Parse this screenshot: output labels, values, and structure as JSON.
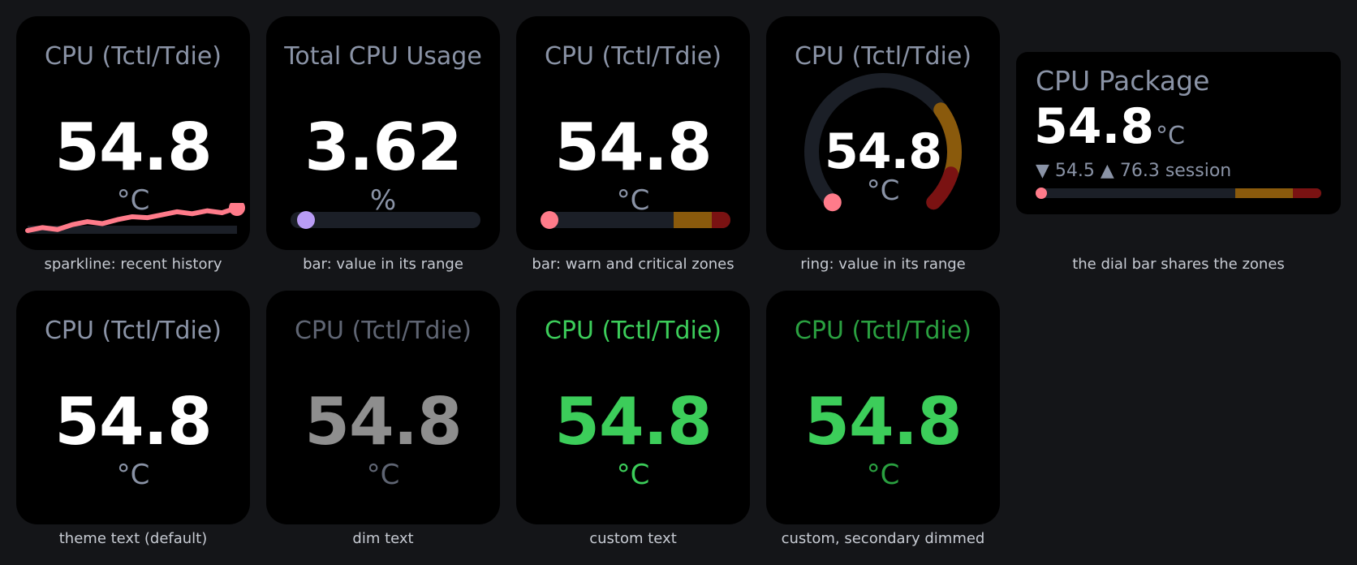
{
  "colors": {
    "page_bg": "#141518",
    "tile_bg": "#000000",
    "title_default": "#8a93a6",
    "title_dim": "#5f6573",
    "value_default": "#ffffff",
    "value_dim": "#8e8e8e",
    "custom_green": "#3ccd5a",
    "custom_green_dim": "#2aa040",
    "track": "#1b1f27",
    "warn": "#8a5a0c",
    "critical": "#7a1212",
    "sparkline": "#ff7b8a",
    "bar_knob_purple": "#b99cf5",
    "knob_red": "#ff7b8a"
  },
  "tiles": [
    {
      "title": "CPU (Tctl/Tdie)",
      "value": "54.8",
      "unit": "°C",
      "caption": "sparkline: recent history",
      "visual": "sparkline",
      "sparkline_values": [
        54.0,
        54.3,
        54.1,
        54.6,
        54.9,
        54.7,
        55.1,
        55.4,
        55.3,
        55.6,
        55.9,
        55.7,
        56.0,
        55.8,
        56.3
      ]
    },
    {
      "title": "Total CPU Usage",
      "value": "3.62",
      "unit": "%",
      "caption": "bar: value in its range",
      "visual": "bar",
      "bar_fraction": 0.036
    },
    {
      "title": "CPU (Tctl/Tdie)",
      "value": "54.8",
      "unit": "°C",
      "caption": "bar: warn and critical zones",
      "visual": "bar-zones",
      "bar_fraction": 0.0,
      "warn_from": 0.7,
      "critical_from": 0.9
    },
    {
      "title": "CPU (Tctl/Tdie)",
      "value": "54.8",
      "unit": "°C",
      "caption": "ring: value in its range",
      "visual": "ring",
      "ring_fraction": 0.0,
      "warn_from": 0.7,
      "critical_from": 0.9
    },
    {
      "title": "CPU (Tctl/Tdie)",
      "value": "54.8",
      "unit": "°C",
      "caption": "theme text (default)",
      "visual": "none",
      "style": "default"
    },
    {
      "title": "CPU (Tctl/Tdie)",
      "value": "54.8",
      "unit": "°C",
      "caption": "dim text",
      "visual": "none",
      "style": "dim"
    },
    {
      "title": "CPU (Tctl/Tdie)",
      "value": "54.8",
      "unit": "°C",
      "caption": "custom text",
      "visual": "none",
      "style": "custom"
    },
    {
      "title": "CPU (Tctl/Tdie)",
      "value": "54.8",
      "unit": "°C",
      "caption": "custom, secondary dimmed",
      "visual": "none",
      "style": "custom-dim"
    }
  ],
  "package": {
    "title": "CPU Package",
    "value": "54.8",
    "unit": "°C",
    "min_arrow": "▼",
    "min_value": "54.5",
    "max_arrow": "▲",
    "max_value": "76.3",
    "session_label": "session",
    "bar_fraction": 0.0,
    "warn_from": 0.7,
    "critical_from": 0.9,
    "caption": "the dial bar shares the zones"
  }
}
